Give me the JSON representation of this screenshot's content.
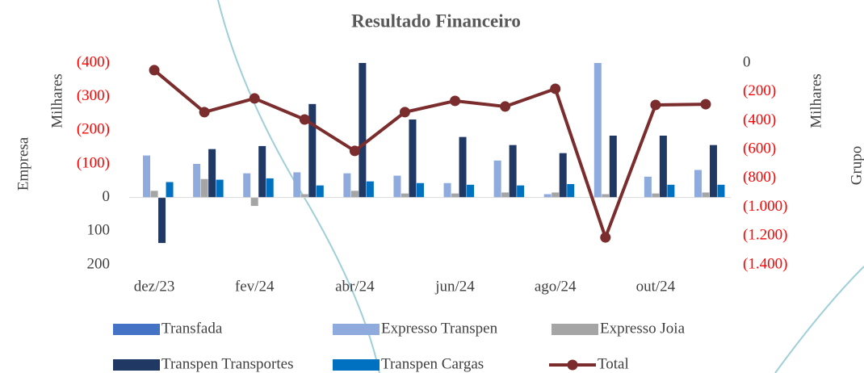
{
  "chart_data": {
    "type": "bar",
    "title": "Resultado Financeiro",
    "ylabel": "Empresa",
    "yunit": "Milhares",
    "y2label": "Grupo",
    "y2unit": "Milhares",
    "categories": [
      "dez/23",
      null,
      "fev/24",
      null,
      "abr/24",
      null,
      "jun/24",
      null,
      "ago/24",
      null,
      "out/24",
      null
    ],
    "ylim": [
      200,
      -400
    ],
    "yticks": [
      {
        "value": -400,
        "label": "(400)"
      },
      {
        "value": -300,
        "label": "(300)"
      },
      {
        "value": -200,
        "label": "(200)"
      },
      {
        "value": -100,
        "label": "(100)"
      },
      0,
      100,
      200
    ],
    "y2lim": [
      -1400,
      0
    ],
    "y2ticks": [
      0,
      {
        "value": -200,
        "label": "(200)"
      },
      {
        "value": -400,
        "label": "(400)"
      },
      {
        "value": -600,
        "label": "(600)"
      },
      {
        "value": -800,
        "label": "(800)"
      },
      {
        "value": -1000,
        "label": "(1.000)"
      },
      {
        "value": -1200,
        "label": "(1.200)"
      },
      {
        "value": -1400,
        "label": "(1.400)"
      }
    ],
    "series": [
      {
        "name": "Transfada",
        "color": "#4472c4",
        "values": [
          0,
          0,
          0,
          0,
          0,
          0,
          0,
          0,
          0,
          0,
          0,
          0
        ]
      },
      {
        "name": "Expresso Transpen",
        "color": "#8faadc",
        "values": [
          -125,
          -100,
          -72,
          -75,
          -72,
          -65,
          -43,
          -110,
          -10,
          -400,
          -62,
          -82
        ]
      },
      {
        "name": "Expresso Joia",
        "color": "#a5a5a5",
        "values": [
          -20,
          -55,
          25,
          -10,
          -20,
          -12,
          -12,
          -15,
          -15,
          -10,
          -12,
          -15
        ]
      },
      {
        "name": "Transpen Transportes",
        "color": "#203864",
        "values": [
          135,
          -144,
          -153,
          -278,
          -400,
          -232,
          -180,
          -156,
          -132,
          -184,
          -184,
          -156
        ]
      },
      {
        "name": "Transpen Cargas",
        "color": "#0070c0",
        "values": [
          -46,
          -53,
          -57,
          -36,
          -48,
          -43,
          -38,
          -36,
          -40,
          0,
          -38,
          -38
        ]
      },
      {
        "name": "Total",
        "type": "line",
        "axis": "y2",
        "color": "#7b2c2c",
        "values": [
          -50,
          -341,
          -246,
          -392,
          -610,
          -341,
          -263,
          -302,
          -179,
          -1210,
          -291,
          -286
        ]
      }
    ]
  }
}
